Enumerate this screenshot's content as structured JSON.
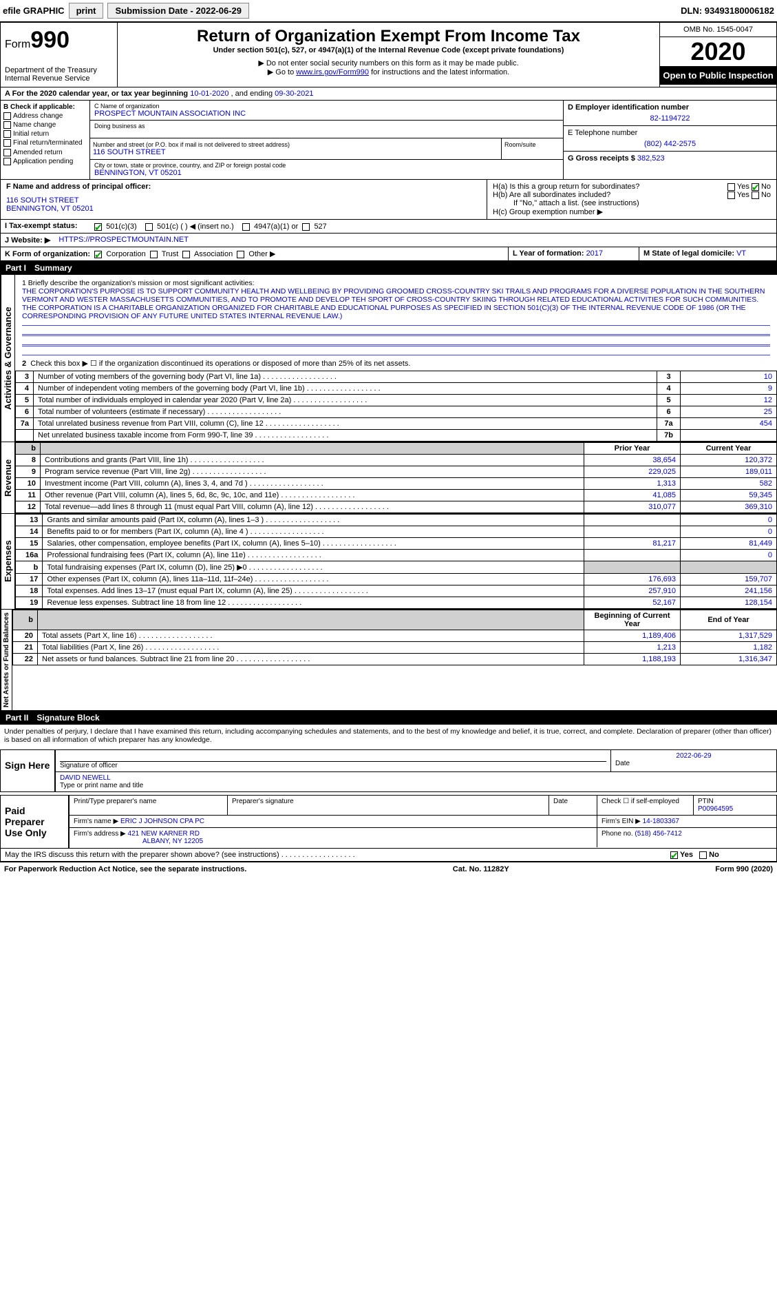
{
  "topbar": {
    "efile": "efile GRAPHIC",
    "print": "print",
    "sub_lbl": "Submission Date - ",
    "sub_date": "2022-06-29",
    "dln_lbl": "DLN: ",
    "dln": "93493180006182"
  },
  "header": {
    "form_prefix": "Form",
    "form_no": "990",
    "dept1": "Department of the Treasury",
    "dept2": "Internal Revenue Service",
    "title": "Return of Organization Exempt From Income Tax",
    "sub1": "Under section 501(c), 527, or 4947(a)(1) of the Internal Revenue Code (except private foundations)",
    "sub2": "▶ Do not enter social security numbers on this form as it may be made public.",
    "sub3_pre": "▶ Go to ",
    "sub3_link": "www.irs.gov/Form990",
    "sub3_post": " for instructions and the latest information.",
    "omb": "OMB No. 1545-0047",
    "year": "2020",
    "open": "Open to Public Inspection"
  },
  "period": {
    "a_pre": "A   For the 2020 calendar year, or tax year beginning ",
    "begin": "10-01-2020",
    "mid": " , and ending ",
    "end": "09-30-2021"
  },
  "blockB": {
    "hdr": "B Check if applicable:",
    "items": [
      "Address change",
      "Name change",
      "Initial return",
      "Final return/terminated",
      "Amended return",
      "Application pending"
    ]
  },
  "blockC": {
    "name_lbl": "C Name of organization",
    "name": "PROSPECT MOUNTAIN ASSOCIATION INC",
    "dba_lbl": "Doing business as",
    "dba": "",
    "addr_lbl": "Number and street (or P.O. box if mail is not delivered to street address)",
    "room_lbl": "Room/suite",
    "addr": "116 SOUTH STREET",
    "city_lbl": "City or town, state or province, country, and ZIP or foreign postal code",
    "city": "BENNINGTON, VT  05201"
  },
  "blockD": {
    "d_lbl": "D Employer identification number",
    "d_val": "82-1194722",
    "e_lbl": "E Telephone number",
    "e_val": "(802) 442-2575",
    "g_lbl": "G Gross receipts $ ",
    "g_val": "382,523"
  },
  "blockF": {
    "f_lbl": "F Name and address of principal officer:",
    "f_addr1": "116 SOUTH STREET",
    "f_addr2": "BENNINGTON, VT  05201"
  },
  "blockH": {
    "h_a": "H(a)  Is this a group return for subordinates?",
    "h_b": "H(b)  Are all subordinates included?",
    "h_b2": "If \"No,\" attach a list. (see instructions)",
    "h_c": "H(c)  Group exemption number ▶",
    "yes": "Yes",
    "no": "No"
  },
  "rowI": {
    "lbl": "I  Tax-exempt status:",
    "o1": "501(c)(3)",
    "o2": "501(c) (   ) ◀ (insert no.)",
    "o3": "4947(a)(1) or",
    "o4": "527"
  },
  "rowJ": {
    "lbl": "J  Website: ▶",
    "val": "HTTPS://PROSPECTMOUNTAIN.NET"
  },
  "rowK": {
    "lbl": "K Form of organization:",
    "o1": "Corporation",
    "o2": "Trust",
    "o3": "Association",
    "o4": "Other ▶"
  },
  "rowL": {
    "l_lbl": "L Year of formation: ",
    "l_val": "2017",
    "m_lbl": "M State of legal domicile: ",
    "m_val": "VT"
  },
  "part1": {
    "hdr_pn": "Part I",
    "hdr_t": "Summary",
    "tab1": "Activities & Governance",
    "tab2": "Revenue",
    "tab3": "Expenses",
    "tab4": "Net Assets or Fund Balances",
    "q1": "1  Briefly describe the organization's mission or most significant activities:",
    "mission": "THE CORPORATION'S PURPOSE IS TO SUPPORT COMMUNITY HEALTH AND WELLBEING BY PROVIDING GROOMED CROSS-COUNTRY SKI TRAILS AND PROGRAMS FOR A DIVERSE POPULATION IN THE SOUTHERN VERMONT AND WESTER MASSACHUSETTS COMMUNITIES, AND TO PROMOTE AND DEVELOP TEH SPORT OF CROSS-COUNTRY SKIING THROUGH RELATED EDUCATIONAL ACTIVITIES FOR SUCH COMMUNITIES. THE CORPORATION IS A CHARITABLE ORGANIZATION ORGANIZED FOR CHARITABLE AND EDUCATIONAL PURPOSES AS SPECIFIED IN SECTION 501(C)(3) OF THE INTERNAL REVENUE CODE OF 1986 (OR THE CORRESPONDING PROVISION OF ANY FUTURE UNITED STATES INTERNAL REVENUE LAW.)",
    "q2": "Check this box ▶ ☐ if the organization discontinued its operations or disposed of more than 25% of its net assets.",
    "lines_gov": [
      {
        "n": "3",
        "t": "Number of voting members of the governing body (Part VI, line 1a)",
        "b": "3",
        "v": "10"
      },
      {
        "n": "4",
        "t": "Number of independent voting members of the governing body (Part VI, line 1b)",
        "b": "4",
        "v": "9"
      },
      {
        "n": "5",
        "t": "Total number of individuals employed in calendar year 2020 (Part V, line 2a)",
        "b": "5",
        "v": "12"
      },
      {
        "n": "6",
        "t": "Total number of volunteers (estimate if necessary)",
        "b": "6",
        "v": "25"
      },
      {
        "n": "7a",
        "t": "Total unrelated business revenue from Part VIII, column (C), line 12",
        "b": "7a",
        "v": "454"
      },
      {
        "n": "",
        "t": "Net unrelated business taxable income from Form 990-T, line 39",
        "b": "7b",
        "v": ""
      }
    ],
    "col_prior": "Prior Year",
    "col_cur": "Current Year",
    "lines_rev": [
      {
        "n": "8",
        "t": "Contributions and grants (Part VIII, line 1h)",
        "p": "38,654",
        "c": "120,372"
      },
      {
        "n": "9",
        "t": "Program service revenue (Part VIII, line 2g)",
        "p": "229,025",
        "c": "189,011"
      },
      {
        "n": "10",
        "t": "Investment income (Part VIII, column (A), lines 3, 4, and 7d )",
        "p": "1,313",
        "c": "582"
      },
      {
        "n": "11",
        "t": "Other revenue (Part VIII, column (A), lines 5, 6d, 8c, 9c, 10c, and 11e)",
        "p": "41,085",
        "c": "59,345"
      },
      {
        "n": "12",
        "t": "Total revenue—add lines 8 through 11 (must equal Part VIII, column (A), line 12)",
        "p": "310,077",
        "c": "369,310"
      }
    ],
    "lines_exp": [
      {
        "n": "13",
        "t": "Grants and similar amounts paid (Part IX, column (A), lines 1–3 )",
        "p": "",
        "c": "0"
      },
      {
        "n": "14",
        "t": "Benefits paid to or for members (Part IX, column (A), line 4 )",
        "p": "",
        "c": "0"
      },
      {
        "n": "15",
        "t": "Salaries, other compensation, employee benefits (Part IX, column (A), lines 5–10)",
        "p": "81,217",
        "c": "81,449"
      },
      {
        "n": "16a",
        "t": "Professional fundraising fees (Part IX, column (A), line 11e)",
        "p": "",
        "c": "0"
      },
      {
        "n": "b",
        "t": "Total fundraising expenses (Part IX, column (D), line 25) ▶0",
        "p": "shade",
        "c": "shade"
      },
      {
        "n": "17",
        "t": "Other expenses (Part IX, column (A), lines 11a–11d, 11f–24e)",
        "p": "176,693",
        "c": "159,707"
      },
      {
        "n": "18",
        "t": "Total expenses. Add lines 13–17 (must equal Part IX, column (A), line 25)",
        "p": "257,910",
        "c": "241,156"
      },
      {
        "n": "19",
        "t": "Revenue less expenses. Subtract line 18 from line 12",
        "p": "52,167",
        "c": "128,154"
      }
    ],
    "col_beg": "Beginning of Current Year",
    "col_end": "End of Year",
    "lines_net": [
      {
        "n": "20",
        "t": "Total assets (Part X, line 16)",
        "p": "1,189,406",
        "c": "1,317,529"
      },
      {
        "n": "21",
        "t": "Total liabilities (Part X, line 26)",
        "p": "1,213",
        "c": "1,182"
      },
      {
        "n": "22",
        "t": "Net assets or fund balances. Subtract line 21 from line 20",
        "p": "1,188,193",
        "c": "1,316,347"
      }
    ]
  },
  "part2": {
    "hdr_pn": "Part II",
    "hdr_t": "Signature Block",
    "decl": "Under penalties of perjury, I declare that I have examined this return, including accompanying schedules and statements, and to the best of my knowledge and belief, it is true, correct, and complete. Declaration of preparer (other than officer) is based on all information of which preparer has any knowledge.",
    "sign_here": "Sign Here",
    "sig_officer": "Signature of officer",
    "sig_date_lbl": "Date",
    "sig_date": "2022-06-29",
    "officer_name": "DAVID NEWELL",
    "officer_type": "Type or print name and title",
    "paid": "Paid Preparer Use Only",
    "prep_name_lbl": "Print/Type preparer's name",
    "prep_sig_lbl": "Preparer's signature",
    "date_lbl": "Date",
    "self_lbl": "Check ☐ if self-employed",
    "ptin_lbl": "PTIN",
    "ptin": "P00964595",
    "firm_name_lbl": "Firm's name    ▶",
    "firm_name": "ERIC J JOHNSON CPA PC",
    "firm_ein_lbl": "Firm's EIN ▶",
    "firm_ein": "14-1803367",
    "firm_addr_lbl": "Firm's address ▶",
    "firm_addr1": "421 NEW KARNER RD",
    "firm_addr2": "ALBANY, NY  12205",
    "phone_lbl": "Phone no. ",
    "phone": "(518) 456-7412",
    "discuss": "May the IRS discuss this return with the preparer shown above? (see instructions)",
    "yes": "Yes",
    "no": "No"
  },
  "foot": {
    "l": "For Paperwork Reduction Act Notice, see the separate instructions.",
    "c": "Cat. No. 11282Y",
    "r": "Form 990 (2020)"
  },
  "colors": {
    "link": "#0000cc",
    "check": "#00aa00",
    "shade": "#d0d0d0",
    "blueline": "#4040ff"
  }
}
